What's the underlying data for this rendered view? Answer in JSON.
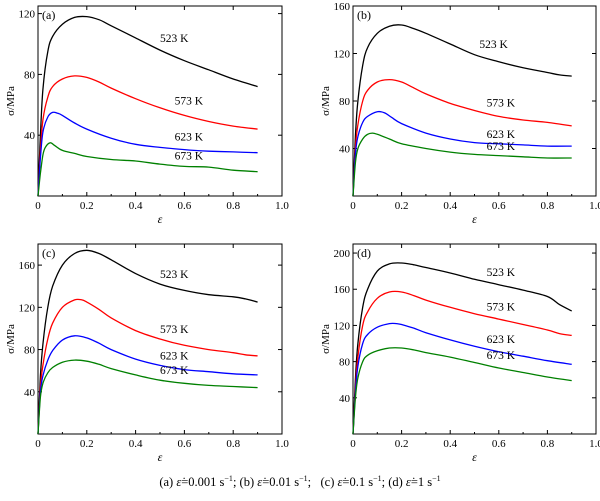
{
  "chart_data": [
    {
      "type": "line",
      "panel_label": "(a)",
      "xlabel": "ε",
      "ylabel": "σ/MPa",
      "xlim": [
        0,
        1.0
      ],
      "ylim": [
        0,
        125
      ],
      "xticks": [
        "0",
        "0.2",
        "0.4",
        "0.6",
        "0.8",
        "1.0"
      ],
      "yticks": [
        "40",
        "80",
        "120"
      ],
      "series": [
        {
          "name": "523 K",
          "color": "#000000",
          "x": [
            0,
            0.01,
            0.02,
            0.04,
            0.06,
            0.1,
            0.15,
            0.2,
            0.25,
            0.3,
            0.4,
            0.5,
            0.6,
            0.7,
            0.8,
            0.9
          ],
          "y": [
            0,
            40,
            70,
            95,
            105,
            113,
            117.5,
            118,
            116,
            112,
            104,
            96,
            89,
            83,
            77,
            72
          ]
        },
        {
          "name": "573 K",
          "color": "#ff0000",
          "x": [
            0,
            0.01,
            0.02,
            0.04,
            0.06,
            0.1,
            0.15,
            0.2,
            0.25,
            0.3,
            0.4,
            0.5,
            0.6,
            0.7,
            0.8,
            0.9
          ],
          "y": [
            0,
            30,
            50,
            65,
            72,
            77,
            79,
            78,
            75,
            71,
            64,
            58,
            53,
            49,
            46,
            44
          ]
        },
        {
          "name": "623 K",
          "color": "#0000ff",
          "x": [
            0,
            0.01,
            0.02,
            0.04,
            0.06,
            0.08,
            0.1,
            0.15,
            0.2,
            0.3,
            0.4,
            0.5,
            0.6,
            0.7,
            0.8,
            0.9
          ],
          "y": [
            0,
            25,
            42,
            52,
            55,
            54.5,
            53,
            48,
            44,
            38,
            34,
            32,
            30.5,
            29.5,
            29,
            28.5
          ]
        },
        {
          "name": "673 K",
          "color": "#008000",
          "x": [
            0,
            0.01,
            0.02,
            0.03,
            0.05,
            0.07,
            0.1,
            0.15,
            0.2,
            0.3,
            0.4,
            0.5,
            0.6,
            0.7,
            0.8,
            0.9
          ],
          "y": [
            0,
            15,
            27,
            32,
            35,
            33,
            30,
            28,
            26,
            24,
            23,
            21,
            19.5,
            19,
            17,
            16
          ]
        }
      ]
    },
    {
      "type": "line",
      "panel_label": "(b)",
      "xlabel": "ε",
      "ylabel": "σ/MPa",
      "xlim": [
        0,
        1.0
      ],
      "ylim": [
        0,
        160
      ],
      "xticks": [
        "0",
        "0.2",
        "0.4",
        "0.6",
        "0.8",
        "1.0"
      ],
      "yticks": [
        "40",
        "80",
        "120",
        "160"
      ],
      "series": [
        {
          "name": "523 K",
          "color": "#000000",
          "x": [
            0,
            0.01,
            0.02,
            0.04,
            0.06,
            0.1,
            0.15,
            0.2,
            0.25,
            0.3,
            0.4,
            0.5,
            0.6,
            0.7,
            0.8,
            0.85,
            0.9
          ],
          "y": [
            0,
            50,
            80,
            110,
            125,
            137,
            143,
            144,
            141,
            137,
            128,
            119,
            113,
            108,
            104,
            102,
            101
          ]
        },
        {
          "name": "573 K",
          "color": "#ff0000",
          "x": [
            0,
            0.01,
            0.02,
            0.04,
            0.06,
            0.1,
            0.15,
            0.2,
            0.25,
            0.3,
            0.4,
            0.5,
            0.6,
            0.7,
            0.8,
            0.9
          ],
          "y": [
            0,
            40,
            60,
            80,
            89,
            96,
            98,
            96,
            91,
            86,
            78,
            72,
            67,
            64,
            62,
            59
          ]
        },
        {
          "name": "623 K",
          "color": "#0000ff",
          "x": [
            0,
            0.01,
            0.02,
            0.04,
            0.06,
            0.1,
            0.13,
            0.16,
            0.2,
            0.3,
            0.4,
            0.5,
            0.6,
            0.7,
            0.8,
            0.9
          ],
          "y": [
            0,
            35,
            50,
            62,
            67,
            71,
            70,
            66,
            61,
            53,
            48,
            45,
            44,
            43,
            42,
            42
          ]
        },
        {
          "name": "673 K",
          "color": "#008000",
          "x": [
            0,
            0.01,
            0.02,
            0.04,
            0.06,
            0.08,
            0.1,
            0.15,
            0.2,
            0.3,
            0.4,
            0.5,
            0.6,
            0.7,
            0.8,
            0.9
          ],
          "y": [
            0,
            28,
            40,
            48,
            52,
            53,
            52,
            48,
            44,
            40,
            37,
            35,
            34,
            33,
            32,
            32
          ]
        }
      ]
    },
    {
      "type": "line",
      "panel_label": "(c)",
      "xlabel": "ε",
      "ylabel": "σ/MPa",
      "xlim": [
        0,
        1.0
      ],
      "ylim": [
        0,
        180
      ],
      "xticks": [
        "0",
        "0.2",
        "0.4",
        "0.6",
        "0.8",
        "1.0"
      ],
      "yticks": [
        "40",
        "80",
        "120",
        "160"
      ],
      "series": [
        {
          "name": "523 K",
          "color": "#000000",
          "x": [
            0,
            0.01,
            0.02,
            0.04,
            0.06,
            0.1,
            0.15,
            0.2,
            0.25,
            0.3,
            0.4,
            0.5,
            0.6,
            0.7,
            0.8,
            0.85,
            0.9
          ],
          "y": [
            0,
            55,
            85,
            120,
            140,
            160,
            171,
            174,
            171,
            165,
            152,
            142,
            136,
            132,
            130,
            128,
            125
          ]
        },
        {
          "name": "573 K",
          "color": "#ff0000",
          "x": [
            0,
            0.01,
            0.02,
            0.04,
            0.06,
            0.1,
            0.15,
            0.18,
            0.2,
            0.25,
            0.3,
            0.4,
            0.5,
            0.6,
            0.7,
            0.8,
            0.85,
            0.9
          ],
          "y": [
            0,
            45,
            65,
            90,
            105,
            120,
            127,
            127,
            125,
            118,
            110,
            98,
            90,
            84,
            80,
            77,
            75,
            74
          ]
        },
        {
          "name": "623 K",
          "color": "#0000ff",
          "x": [
            0,
            0.01,
            0.02,
            0.04,
            0.06,
            0.1,
            0.15,
            0.2,
            0.25,
            0.3,
            0.4,
            0.5,
            0.6,
            0.7,
            0.8,
            0.9
          ],
          "y": [
            0,
            40,
            55,
            70,
            79,
            89,
            93,
            91,
            86,
            80,
            71,
            65,
            61,
            59,
            57,
            56
          ]
        },
        {
          "name": "673 K",
          "color": "#008000",
          "x": [
            0,
            0.01,
            0.02,
            0.04,
            0.06,
            0.1,
            0.15,
            0.2,
            0.25,
            0.3,
            0.4,
            0.5,
            0.6,
            0.7,
            0.8,
            0.9
          ],
          "y": [
            0,
            35,
            48,
            58,
            63,
            68,
            70,
            69,
            66,
            62,
            56,
            51,
            48,
            46,
            45,
            44
          ]
        }
      ]
    },
    {
      "type": "line",
      "panel_label": "(d)",
      "xlabel": "ε",
      "ylabel": "σ/MPa",
      "xlim": [
        0,
        1.0
      ],
      "ylim": [
        0,
        210
      ],
      "xticks": [
        "0",
        "0.2",
        "0.4",
        "0.6",
        "0.8",
        "1.0"
      ],
      "yticks": [
        "40",
        "80",
        "120",
        "160",
        "200"
      ],
      "series": [
        {
          "name": "523 K",
          "color": "#000000",
          "x": [
            0,
            0.01,
            0.02,
            0.04,
            0.06,
            0.1,
            0.15,
            0.2,
            0.25,
            0.3,
            0.4,
            0.5,
            0.6,
            0.7,
            0.8,
            0.85,
            0.9
          ],
          "y": [
            0,
            60,
            100,
            140,
            160,
            180,
            188,
            189,
            187,
            184,
            178,
            171,
            165,
            159,
            152,
            143,
            136
          ]
        },
        {
          "name": "573 K",
          "color": "#ff0000",
          "x": [
            0,
            0.01,
            0.02,
            0.04,
            0.06,
            0.1,
            0.15,
            0.2,
            0.25,
            0.3,
            0.4,
            0.5,
            0.6,
            0.7,
            0.8,
            0.85,
            0.9
          ],
          "y": [
            0,
            50,
            85,
            120,
            135,
            150,
            157,
            157,
            153,
            148,
            140,
            133,
            127,
            121,
            115,
            111,
            109
          ]
        },
        {
          "name": "623 K",
          "color": "#0000ff",
          "x": [
            0,
            0.01,
            0.02,
            0.04,
            0.06,
            0.1,
            0.15,
            0.18,
            0.2,
            0.25,
            0.3,
            0.4,
            0.5,
            0.6,
            0.7,
            0.8,
            0.9
          ],
          "y": [
            0,
            45,
            75,
            100,
            110,
            118,
            122,
            122,
            121,
            117,
            112,
            104,
            97,
            91,
            86,
            81,
            77
          ]
        },
        {
          "name": "673 K",
          "color": "#008000",
          "x": [
            0,
            0.01,
            0.02,
            0.04,
            0.06,
            0.1,
            0.15,
            0.2,
            0.25,
            0.3,
            0.4,
            0.5,
            0.6,
            0.7,
            0.8,
            0.9
          ],
          "y": [
            0,
            40,
            62,
            80,
            87,
            92,
            95,
            95,
            93,
            90,
            85,
            79,
            73,
            68,
            63,
            59
          ]
        }
      ]
    }
  ],
  "caption": {
    "a_prefix": "(a)",
    "a_value": "=0.001 s",
    "b_prefix": "(b)",
    "b_value": "=0.01 s",
    "c_prefix": "(c)",
    "c_value": "=0.1 s",
    "d_prefix": "(d)",
    "d_value": "=1 s",
    "exponent": "−1",
    "rate_symbol": "ε̇"
  }
}
